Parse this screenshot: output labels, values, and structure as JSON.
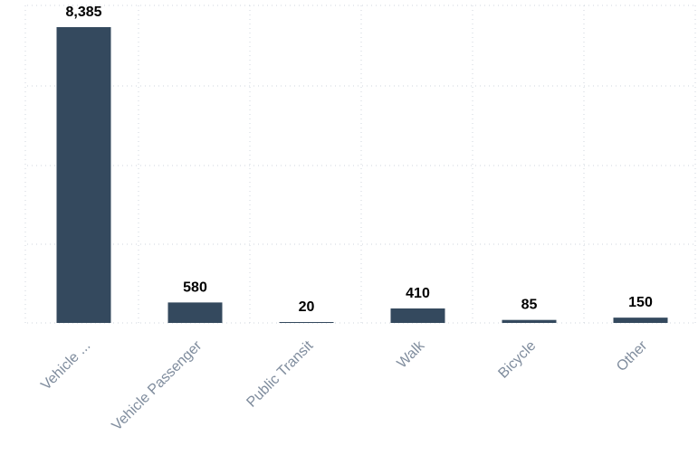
{
  "chart_data": {
    "type": "bar",
    "categories": [
      "Vehicle ...",
      "Vehicle Passenger",
      "Public Transit",
      "Walk",
      "Bicycle",
      "Other"
    ],
    "values": [
      8385,
      580,
      20,
      410,
      85,
      150
    ],
    "data_labels": [
      "8,385",
      "580",
      "20",
      "410",
      "85",
      "150"
    ],
    "title": "",
    "xlabel": "",
    "ylabel": "",
    "ylim": [
      0,
      9000
    ],
    "grid": true,
    "legend": "none",
    "bar_color": "#34495e",
    "label_color": "#000000",
    "tick_color": "#7f8c9d",
    "grid_color": "#cfd5dc"
  }
}
